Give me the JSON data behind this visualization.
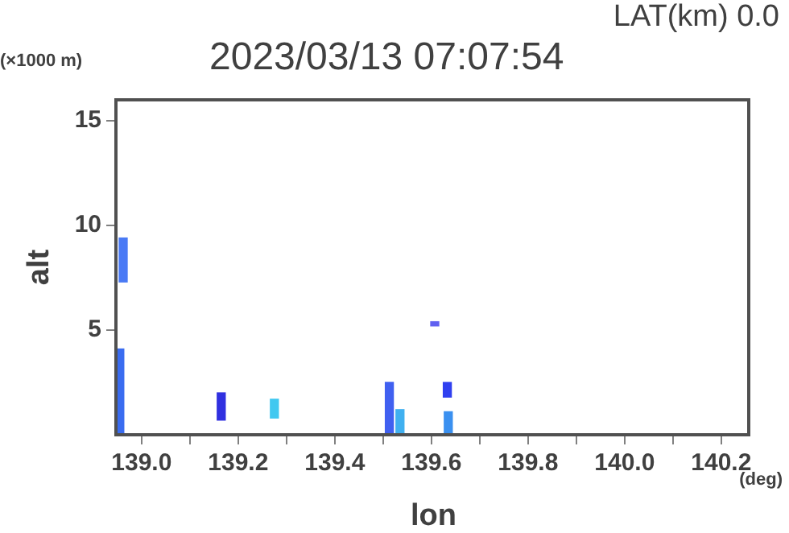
{
  "chart_data": {
    "type": "bar",
    "title": "2023/03/13 07:07:54",
    "subtitle": "LAT(km) 0.0",
    "xlabel": "lon",
    "ylabel": "alt",
    "annotations": [
      "(×1000 m)",
      "(deg)"
    ],
    "x": [
      138.955,
      138.962,
      139.165,
      139.275,
      139.513,
      139.535,
      139.607,
      139.633,
      139.635
    ],
    "base": [
      0,
      7.3,
      0.7,
      0.8,
      0,
      0,
      5.2,
      1.8,
      0
    ],
    "values": [
      4.1,
      2.1,
      1.3,
      0.9,
      2.5,
      1.2,
      0.2,
      0.7,
      1.1
    ],
    "colors": [
      "#3a6cf0",
      "#4a7af5",
      "#3030e0",
      "#40c8f0",
      "#4060f0",
      "#40b0f0",
      "#6060f0",
      "#3040f0",
      "#3a90f0"
    ],
    "xlim": [
      138.947,
      140.257
    ],
    "xticks": [
      {
        "value": 139.0,
        "label": "139.0"
      },
      {
        "value": 139.1,
        "label": null
      },
      {
        "value": 139.2,
        "label": "139.2"
      },
      {
        "value": 139.3,
        "label": null
      },
      {
        "value": 139.4,
        "label": "139.4"
      },
      {
        "value": 139.5,
        "label": null
      },
      {
        "value": 139.6,
        "label": "139.6"
      },
      {
        "value": 139.7,
        "label": null
      },
      {
        "value": 139.8,
        "label": "139.8"
      },
      {
        "value": 139.9,
        "label": null
      },
      {
        "value": 140.0,
        "label": "140.0"
      },
      {
        "value": 140.1,
        "label": null
      },
      {
        "value": 140.2,
        "label": "140.2"
      }
    ],
    "ylim": [
      0,
      16
    ],
    "yticks": [
      5,
      10,
      15
    ],
    "grid": false,
    "legend": false
  }
}
